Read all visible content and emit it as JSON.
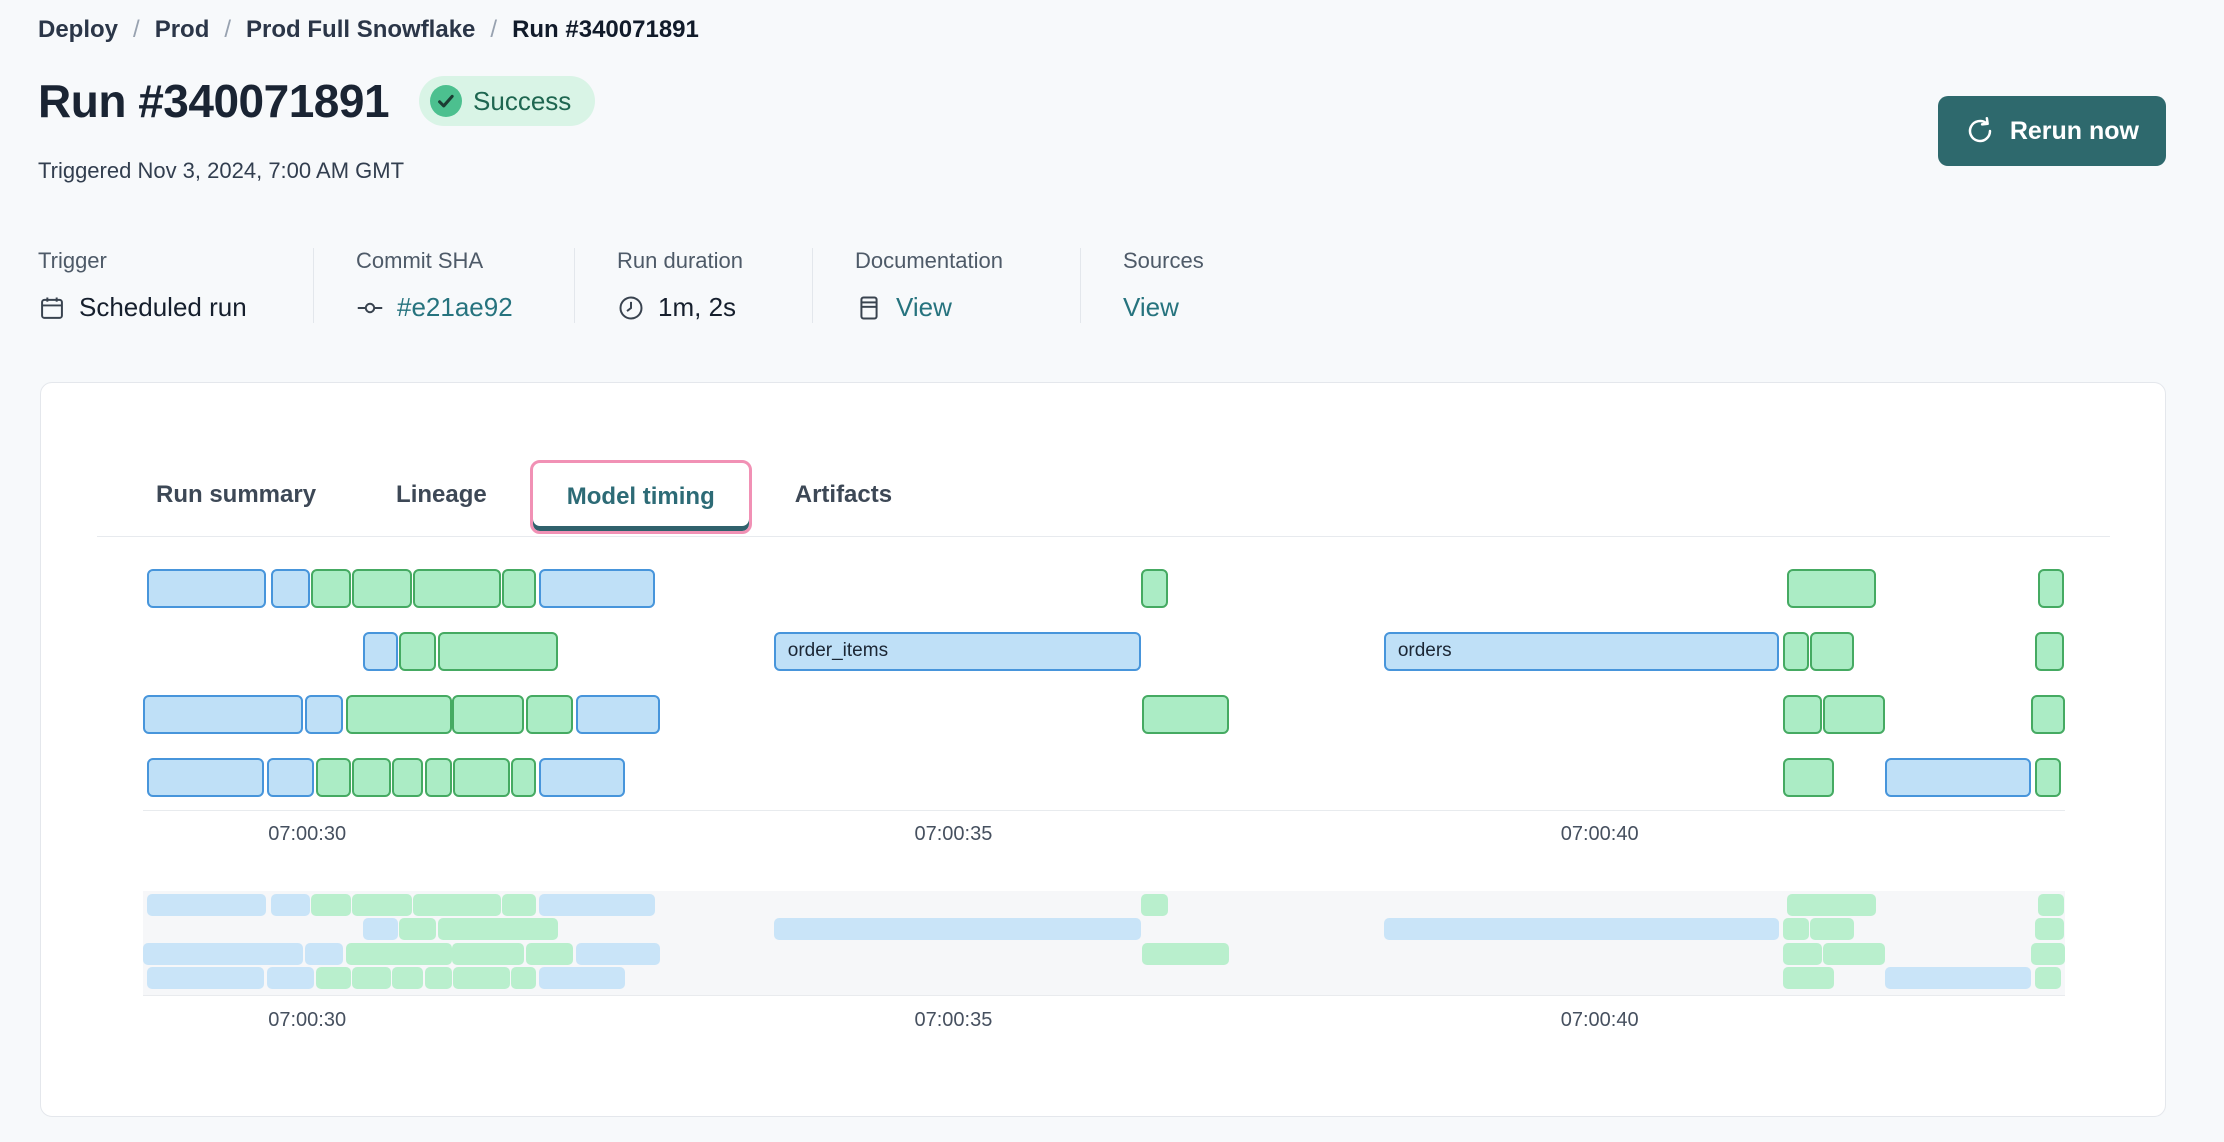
{
  "breadcrumb": {
    "separator": "/",
    "items": [
      "Deploy",
      "Prod",
      "Prod Full Snowflake",
      "Run #340071891"
    ]
  },
  "header": {
    "title": "Run #340071891",
    "status": "Success",
    "triggered": "Triggered Nov 3, 2024, 7:00 AM GMT",
    "rerun_label": "Rerun now"
  },
  "metadata": {
    "columns": [
      {
        "label": "Trigger",
        "value": "Scheduled run",
        "icon": "calendar-icon"
      },
      {
        "label": "Commit SHA",
        "value": "#e21ae92",
        "icon": "commit-icon"
      },
      {
        "label": "Run duration",
        "value": "1m, 2s",
        "icon": "clock-icon"
      },
      {
        "label": "Documentation",
        "value": "View",
        "icon": "document-icon"
      },
      {
        "label": "Sources",
        "value": "View",
        "icon": ""
      }
    ]
  },
  "tabs": {
    "items": [
      "Run summary",
      "Lineage",
      "Model timing",
      "Artifacts"
    ],
    "active": "Model timing"
  },
  "chart_data": {
    "type": "gantt",
    "title": "Model timing",
    "x_unit": "time of day (GMT)",
    "x_domain_seconds_after_07_00": [
      28.73,
      43.6
    ],
    "ticks": [
      {
        "t": 30,
        "label": "07:00:30"
      },
      {
        "t": 35,
        "label": "07:00:35"
      },
      {
        "t": 40,
        "label": "07:00:40"
      }
    ],
    "colors": {
      "bar_blue_fill": "#bfe0f7",
      "bar_blue_border": "#4795db",
      "bar_green_fill": "#abecc5",
      "bar_green_border": "#45aa62",
      "mini_blue": "#c9e4f8",
      "mini_green": "#b9efcd",
      "minimap_band": "#f6f7f9"
    },
    "rows": [
      [
        {
          "s": 28.76,
          "e": 29.68,
          "c": "blue"
        },
        {
          "s": 29.72,
          "e": 30.02,
          "c": "blue"
        },
        {
          "s": 30.03,
          "e": 30.34,
          "c": "green"
        },
        {
          "s": 30.35,
          "e": 30.81,
          "c": "green"
        },
        {
          "s": 30.82,
          "e": 31.5,
          "c": "green"
        },
        {
          "s": 31.51,
          "e": 31.77,
          "c": "green"
        },
        {
          "s": 31.79,
          "e": 32.69,
          "c": "blue"
        },
        {
          "s": 36.45,
          "e": 36.66,
          "c": "green"
        },
        {
          "s": 41.45,
          "e": 42.14,
          "c": "green"
        },
        {
          "s": 43.39,
          "e": 43.59,
          "c": "green"
        }
      ],
      [
        {
          "s": 30.43,
          "e": 30.7,
          "c": "blue"
        },
        {
          "s": 30.71,
          "e": 31.0,
          "c": "green"
        },
        {
          "s": 31.01,
          "e": 31.94,
          "c": "green"
        },
        {
          "s": 33.61,
          "e": 36.45,
          "c": "blue",
          "label": "order_items"
        },
        {
          "s": 38.33,
          "e": 41.39,
          "c": "blue",
          "label": "orders"
        },
        {
          "s": 41.42,
          "e": 41.62,
          "c": "green"
        },
        {
          "s": 41.63,
          "e": 41.97,
          "c": "green"
        },
        {
          "s": 43.37,
          "e": 43.59,
          "c": "green"
        }
      ],
      [
        {
          "s": 28.73,
          "e": 29.97,
          "c": "blue"
        },
        {
          "s": 29.98,
          "e": 30.28,
          "c": "blue"
        },
        {
          "s": 30.3,
          "e": 31.12,
          "c": "green"
        },
        {
          "s": 31.12,
          "e": 31.68,
          "c": "green"
        },
        {
          "s": 31.69,
          "e": 32.06,
          "c": "green"
        },
        {
          "s": 32.08,
          "e": 32.73,
          "c": "blue"
        },
        {
          "s": 36.46,
          "e": 37.13,
          "c": "green"
        },
        {
          "s": 41.42,
          "e": 41.72,
          "c": "green"
        },
        {
          "s": 41.73,
          "e": 42.21,
          "c": "green"
        },
        {
          "s": 43.34,
          "e": 43.6,
          "c": "green"
        }
      ],
      [
        {
          "s": 28.76,
          "e": 29.67,
          "c": "blue"
        },
        {
          "s": 29.69,
          "e": 30.05,
          "c": "blue"
        },
        {
          "s": 30.07,
          "e": 30.34,
          "c": "green"
        },
        {
          "s": 30.35,
          "e": 30.65,
          "c": "green"
        },
        {
          "s": 30.66,
          "e": 30.9,
          "c": "green"
        },
        {
          "s": 30.91,
          "e": 31.12,
          "c": "green"
        },
        {
          "s": 31.13,
          "e": 31.57,
          "c": "green"
        },
        {
          "s": 31.58,
          "e": 31.77,
          "c": "green"
        },
        {
          "s": 31.79,
          "e": 32.46,
          "c": "blue"
        },
        {
          "s": 41.42,
          "e": 41.81,
          "c": "green"
        },
        {
          "s": 42.21,
          "e": 43.34,
          "c": "blue"
        },
        {
          "s": 43.37,
          "e": 43.57,
          "c": "green"
        }
      ]
    ]
  }
}
